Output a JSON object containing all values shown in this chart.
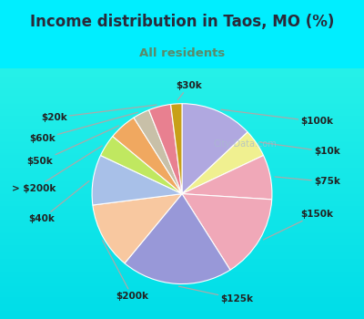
{
  "title": "Income distribution in Taos, MO (%)",
  "subtitle": "All residents",
  "title_color": "#2a2a3a",
  "subtitle_color": "#5a8a6a",
  "background_color": "#00eeff",
  "chart_bg_gradient_top": "#e8f5f0",
  "chart_bg_gradient_bottom": "#d8f0e0",
  "labels": [
    "$100k",
    "$10k",
    "$75k",
    "$150k",
    "$125k",
    "$200k",
    "$40k",
    "> $200k",
    "$50k",
    "$60k",
    "$20k",
    "$30k"
  ],
  "values": [
    13,
    5,
    8,
    15,
    20,
    12,
    9,
    4,
    5,
    3,
    4,
    2
  ],
  "colors": [
    "#b0a8e0",
    "#f0f090",
    "#f0a8b8",
    "#f0a8b8",
    "#9898d8",
    "#f8c8a0",
    "#a8c0e8",
    "#c0e860",
    "#f0a860",
    "#c8c0a8",
    "#e88090",
    "#c8a018"
  ],
  "startangle": 90,
  "figsize": [
    4.0,
    3.5
  ],
  "dpi": 100,
  "label_text_color": "#222222",
  "label_fontsize": 7.5,
  "watermark_text": "City-Data.com",
  "watermark_color": "#aabbcc",
  "leader_line_color": "#aaaaaa"
}
